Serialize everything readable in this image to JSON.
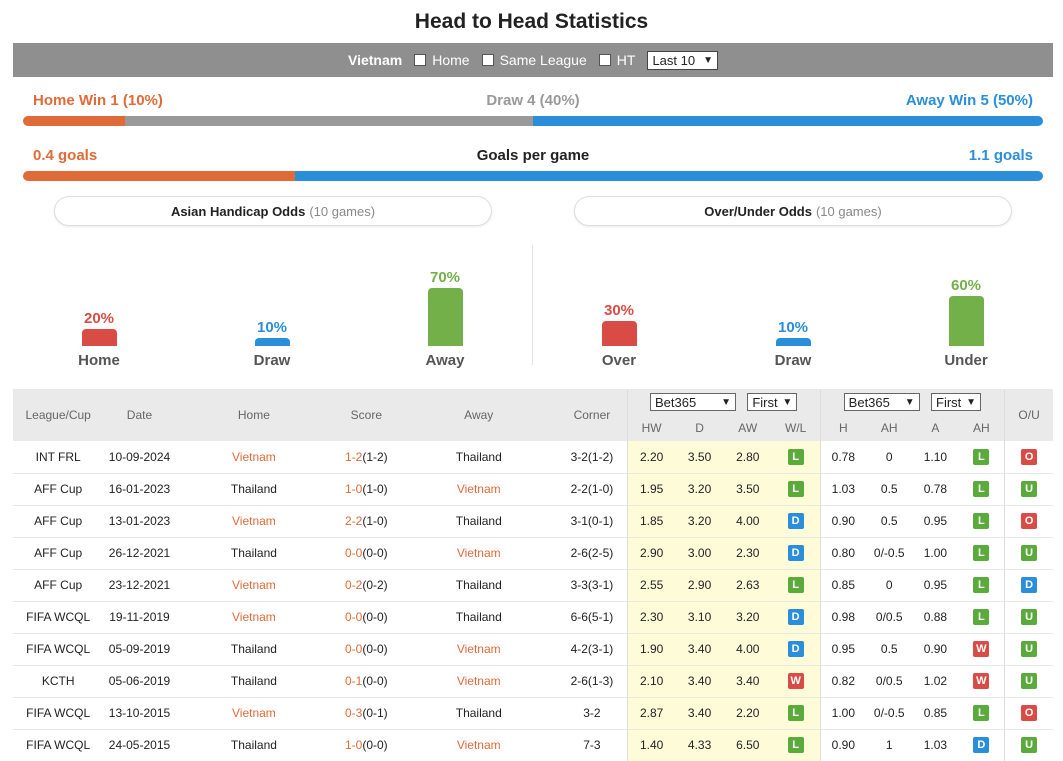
{
  "title": "Head to Head Statistics",
  "filters": {
    "team": "Vietnam",
    "home_label": "Home",
    "same_league_label": "Same League",
    "ht_label": "HT",
    "range_value": "Last 10"
  },
  "summary": {
    "home_win": "Home Win 1 (10%)",
    "draw": "Draw 4 (40%)",
    "away_win": "Away Win 5 (50%)",
    "home_goals": "0.4 goals",
    "goals_label": "Goals per game",
    "away_goals": "1.1 goals",
    "result_split": [
      10,
      40,
      50
    ],
    "goals_split": [
      0.4,
      1.1
    ]
  },
  "ah_panel": {
    "title": "Asian Handicap Odds",
    "games": "(10 games)",
    "bars": [
      {
        "label": "Home",
        "pct": "20%",
        "value": 20
      },
      {
        "label": "Draw",
        "pct": "10%",
        "value": 10
      },
      {
        "label": "Away",
        "pct": "70%",
        "value": 70
      }
    ]
  },
  "ou_panel": {
    "title": "Over/Under Odds",
    "games": "(10 games)",
    "bars": [
      {
        "label": "Over",
        "pct": "30%",
        "value": 30
      },
      {
        "label": "Draw",
        "pct": "10%",
        "value": 10
      },
      {
        "label": "Under",
        "pct": "60%",
        "value": 60
      }
    ]
  },
  "colors": {
    "orange": "#e06a38",
    "grey": "#9a9a9a",
    "blue": "#2a8fd8",
    "red": "#d94b45",
    "green": "#74b04a"
  },
  "table": {
    "headers": {
      "league": "League/Cup",
      "date": "Date",
      "home": "Home",
      "score": "Score",
      "away": "Away",
      "corner": "Corner",
      "bookmaker1": "Bet365",
      "period1": "First",
      "bookmaker2": "Bet365",
      "period2": "First",
      "ou": "O/U",
      "hw": "HW",
      "d": "D",
      "aw": "AW",
      "wl": "W/L",
      "h": "H",
      "ah": "AH",
      "a": "A",
      "ah_res": "AH"
    },
    "rows": [
      {
        "league": "INT FRL",
        "date": "10-09-2024",
        "home": "Vietnam",
        "score_ft": "1-2",
        "score_ht": "(1-2)",
        "away": "Thailand",
        "corner": "3-2(1-2)",
        "hw": "2.20",
        "d": "3.50",
        "aw": "2.80",
        "wl": "L",
        "h": "0.78",
        "ah": "0",
        "a": "1.10",
        "ahr": "L",
        "ou": "O"
      },
      {
        "league": "AFF Cup",
        "date": "16-01-2023",
        "home": "Thailand",
        "score_ft": "1-0",
        "score_ht": "(1-0)",
        "away": "Vietnam",
        "corner": "2-2(1-0)",
        "hw": "1.95",
        "d": "3.20",
        "aw": "3.50",
        "wl": "L",
        "h": "1.03",
        "ah": "0.5",
        "a": "0.78",
        "ahr": "L",
        "ou": "U"
      },
      {
        "league": "AFF Cup",
        "date": "13-01-2023",
        "home": "Vietnam",
        "score_ft": "2-2",
        "score_ht": "(1-0)",
        "away": "Thailand",
        "corner": "3-1(0-1)",
        "hw": "1.85",
        "d": "3.20",
        "aw": "4.00",
        "wl": "D",
        "h": "0.90",
        "ah": "0.5",
        "a": "0.95",
        "ahr": "L",
        "ou": "O"
      },
      {
        "league": "AFF Cup",
        "date": "26-12-2021",
        "home": "Thailand",
        "score_ft": "0-0",
        "score_ht": "(0-0)",
        "away": "Vietnam",
        "corner": "2-6(2-5)",
        "hw": "2.90",
        "d": "3.00",
        "aw": "2.30",
        "wl": "D",
        "h": "0.80",
        "ah": "0/-0.5",
        "a": "1.00",
        "ahr": "L",
        "ou": "U"
      },
      {
        "league": "AFF Cup",
        "date": "23-12-2021",
        "home": "Vietnam",
        "score_ft": "0-2",
        "score_ht": "(0-2)",
        "away": "Thailand",
        "corner": "3-3(3-1)",
        "hw": "2.55",
        "d": "2.90",
        "aw": "2.63",
        "wl": "L",
        "h": "0.85",
        "ah": "0",
        "a": "0.95",
        "ahr": "L",
        "ou": "D"
      },
      {
        "league": "FIFA WCQL",
        "date": "19-11-2019",
        "home": "Vietnam",
        "score_ft": "0-0",
        "score_ht": "(0-0)",
        "away": "Thailand",
        "corner": "6-6(5-1)",
        "hw": "2.30",
        "d": "3.10",
        "aw": "3.20",
        "wl": "D",
        "h": "0.98",
        "ah": "0/0.5",
        "a": "0.88",
        "ahr": "L",
        "ou": "U"
      },
      {
        "league": "FIFA WCQL",
        "date": "05-09-2019",
        "home": "Thailand",
        "score_ft": "0-0",
        "score_ht": "(0-0)",
        "away": "Vietnam",
        "corner": "4-2(3-1)",
        "hw": "1.90",
        "d": "3.40",
        "aw": "4.00",
        "wl": "D",
        "h": "0.95",
        "ah": "0.5",
        "a": "0.90",
        "ahr": "W",
        "ou": "U"
      },
      {
        "league": "KCTH",
        "date": "05-06-2019",
        "home": "Thailand",
        "score_ft": "0-1",
        "score_ht": "(0-0)",
        "away": "Vietnam",
        "corner": "2-6(1-3)",
        "hw": "2.10",
        "d": "3.40",
        "aw": "3.40",
        "wl": "W",
        "h": "0.82",
        "ah": "0/0.5",
        "a": "1.02",
        "ahr": "W",
        "ou": "U"
      },
      {
        "league": "FIFA WCQL",
        "date": "13-10-2015",
        "home": "Vietnam",
        "score_ft": "0-3",
        "score_ht": "(0-1)",
        "away": "Thailand",
        "corner": "3-2",
        "hw": "2.87",
        "d": "3.40",
        "aw": "2.20",
        "wl": "L",
        "h": "1.00",
        "ah": "0/-0.5",
        "a": "0.85",
        "ahr": "L",
        "ou": "O"
      },
      {
        "league": "FIFA WCQL",
        "date": "24-05-2015",
        "home": "Thailand",
        "score_ft": "1-0",
        "score_ht": "(0-0)",
        "away": "Vietnam",
        "corner": "7-3",
        "hw": "1.40",
        "d": "4.33",
        "aw": "6.50",
        "wl": "L",
        "h": "0.90",
        "ah": "1",
        "a": "1.03",
        "ahr": "D",
        "ou": "U"
      }
    ]
  }
}
